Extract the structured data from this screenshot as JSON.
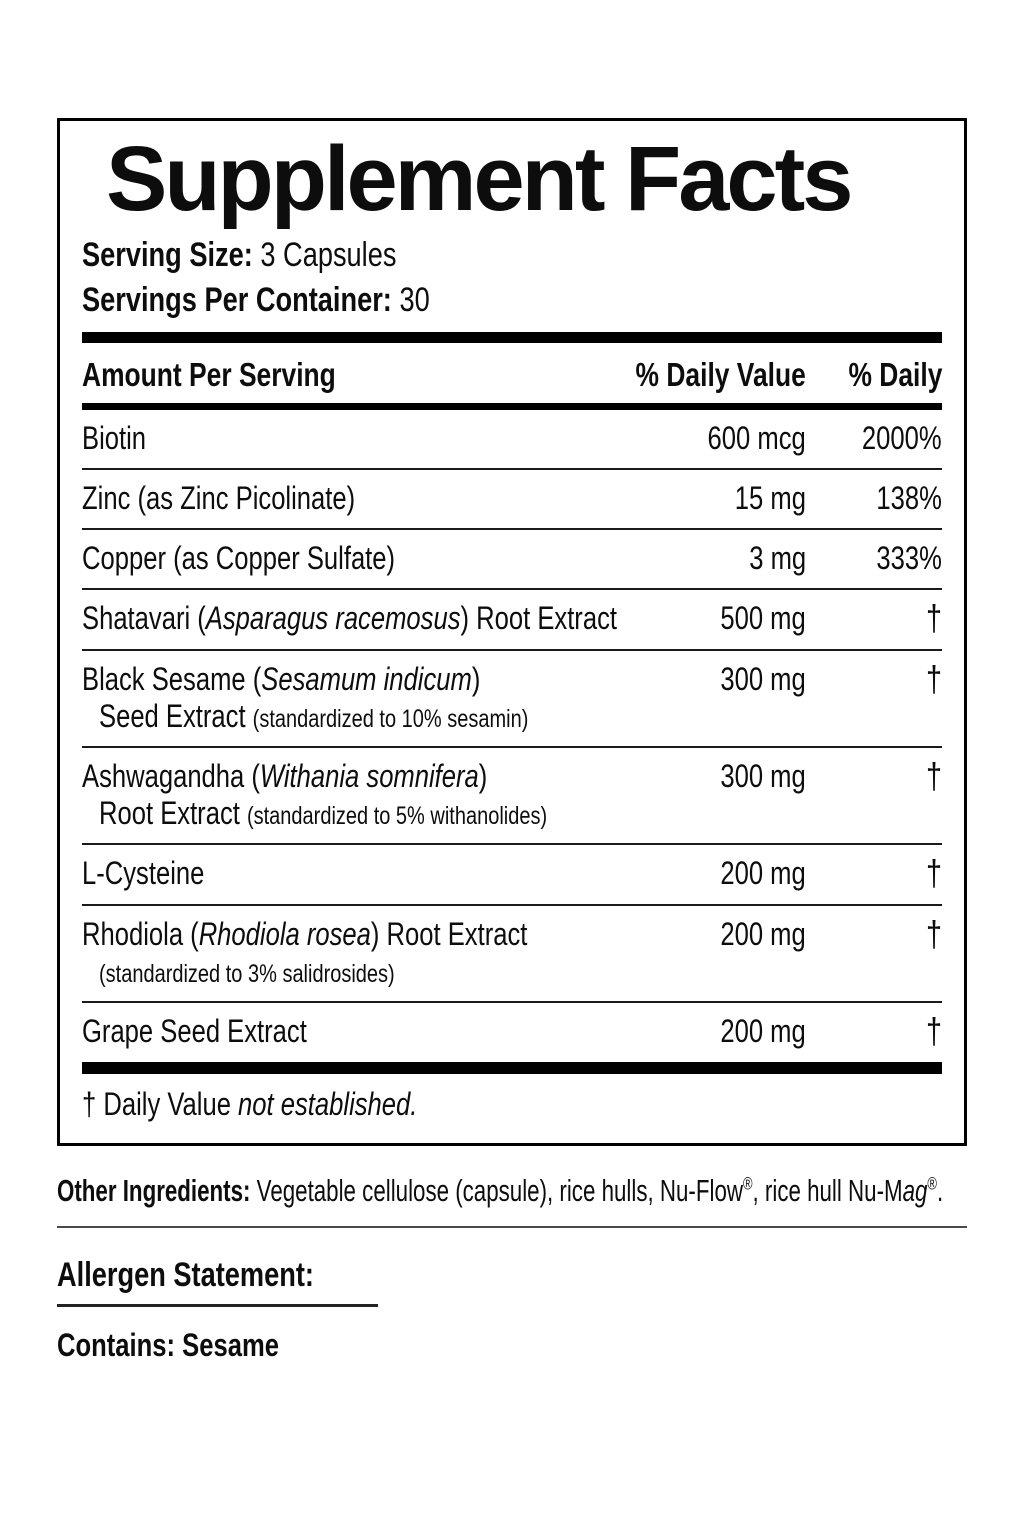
{
  "panel": {
    "title": "Supplement Facts",
    "serving": [
      {
        "label": "Serving Size:",
        "value": "3 Capsules"
      },
      {
        "label": "Servings Per Container:",
        "value": "30"
      }
    ],
    "table_header": {
      "amount_per_serving": "Amount Per Serving",
      "daily_value": "% Daily Value",
      "daily": "% Daily"
    },
    "rows": [
      {
        "lines": [
          [
            {
              "t": "Biotin"
            }
          ]
        ],
        "amount": "600 mcg",
        "dv": "2000%"
      },
      {
        "lines": [
          [
            {
              "t": "Zinc (as Zinc Picolinate)"
            }
          ]
        ],
        "amount": "15 mg",
        "dv": "138%"
      },
      {
        "lines": [
          [
            {
              "t": "Copper (as Copper Sulfate)"
            }
          ]
        ],
        "amount": "3 mg",
        "dv": "333%"
      },
      {
        "lines": [
          [
            {
              "t": "Shatavari ("
            },
            {
              "t": "Asparagus racemosus",
              "i": true
            },
            {
              "t": ") Root Extract"
            }
          ]
        ],
        "amount": "500 mg",
        "dv": "†"
      },
      {
        "lines": [
          [
            {
              "t": "Black Sesame ("
            },
            {
              "t": "Sesamum indicum",
              "i": true
            },
            {
              "t": ")"
            }
          ],
          [
            {
              "t": "Seed Extract "
            },
            {
              "t": "(standardized to 10% sesamin)",
              "s": true
            }
          ]
        ],
        "amount": "300 mg",
        "dv": "†"
      },
      {
        "lines": [
          [
            {
              "t": "Ashwagandha ("
            },
            {
              "t": "Withania somnifera",
              "i": true
            },
            {
              "t": ")"
            }
          ],
          [
            {
              "t": "Root Extract "
            },
            {
              "t": "(standardized to 5% withanolides)",
              "s": true
            }
          ]
        ],
        "amount": "300 mg",
        "dv": "†"
      },
      {
        "lines": [
          [
            {
              "t": "L-Cysteine"
            }
          ]
        ],
        "amount": "200 mg",
        "dv": "†"
      },
      {
        "lines": [
          [
            {
              "t": "Rhodiola ("
            },
            {
              "t": "Rhodiola rosea",
              "i": true
            },
            {
              "t": ") Root Extract"
            }
          ],
          [
            {
              "t": "(standardized to 3% salidrosides)",
              "s": true
            }
          ]
        ],
        "amount": "200 mg",
        "dv": "†"
      },
      {
        "lines": [
          [
            {
              "t": "Grape Seed Extract"
            }
          ]
        ],
        "amount": "200 mg",
        "dv": "†"
      }
    ],
    "footnote_segments": [
      {
        "t": "† Daily Value "
      },
      {
        "t": "not established.",
        "i": true
      }
    ]
  },
  "other_ingredients": {
    "label": "Other Ingredients:",
    "segments": [
      {
        "t": " Vegetable cellulose (capsule), rice hulls, Nu-Flow"
      },
      {
        "t": "®",
        "sup": true
      },
      {
        "t": ", rice hull Nu-M"
      },
      {
        "t": "ag",
        "i": true
      },
      {
        "t": "®",
        "sup": true
      },
      {
        "t": "."
      }
    ]
  },
  "allergen": {
    "title": "Allergen Statement:",
    "contains_label": "Contains:",
    "contains_value": "Sesame"
  },
  "colors": {
    "text": "#0d0d0d",
    "rule": "#000000",
    "background": "#ffffff"
  }
}
